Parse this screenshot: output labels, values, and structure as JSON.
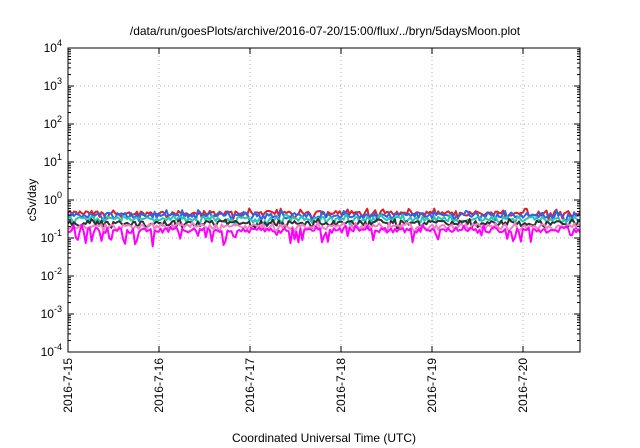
{
  "chart_data": {
    "type": "line",
    "title": "/data/run/goesPlots/archive/2016-07-20/15:00/flux/../bryn/5daysMoon.plot",
    "xlabel": "Coordinated Universal Time (UTC)",
    "ylabel": "cSv/day",
    "y_scale": "log",
    "ylim": [
      0.0001,
      10000
    ],
    "y_ticks": [
      {
        "value": 0.0001,
        "base": "10",
        "exp": "-4"
      },
      {
        "value": 0.001,
        "base": "10",
        "exp": "-3"
      },
      {
        "value": 0.01,
        "base": "10",
        "exp": "-2"
      },
      {
        "value": 0.1,
        "base": "10",
        "exp": "-1"
      },
      {
        "value": 1,
        "base": "10",
        "exp": "0"
      },
      {
        "value": 10,
        "base": "10",
        "exp": "1"
      },
      {
        "value": 100,
        "base": "10",
        "exp": "2"
      },
      {
        "value": 1000,
        "base": "10",
        "exp": "3"
      },
      {
        "value": 10000,
        "base": "10",
        "exp": "4"
      }
    ],
    "xlim": [
      "2016-07-15",
      "2016-07-20 15:00"
    ],
    "x_ticks": [
      "2016-7-15",
      "2016-7-16",
      "2016-7-17",
      "2016-7-18",
      "2016-7-19",
      "2016-7-20"
    ],
    "grid": true,
    "series": [
      {
        "color": "#e02020",
        "base_value": 0.45,
        "min_value": 0.3,
        "max_value": 0.6
      },
      {
        "color": "#3060f0",
        "base_value": 0.4,
        "min_value": 0.28,
        "max_value": 0.55
      },
      {
        "color": "#20c8b0",
        "base_value": 0.32,
        "min_value": 0.22,
        "max_value": 0.42
      },
      {
        "color": "#303030",
        "base_value": 0.25,
        "min_value": 0.18,
        "max_value": 0.32
      },
      {
        "color": "#f080c0",
        "base_value": 0.2,
        "min_value": 0.14,
        "max_value": 0.26
      },
      {
        "color": "#ff00ff",
        "base_value": 0.16,
        "min_value": 0.06,
        "max_value": 0.22
      }
    ]
  }
}
